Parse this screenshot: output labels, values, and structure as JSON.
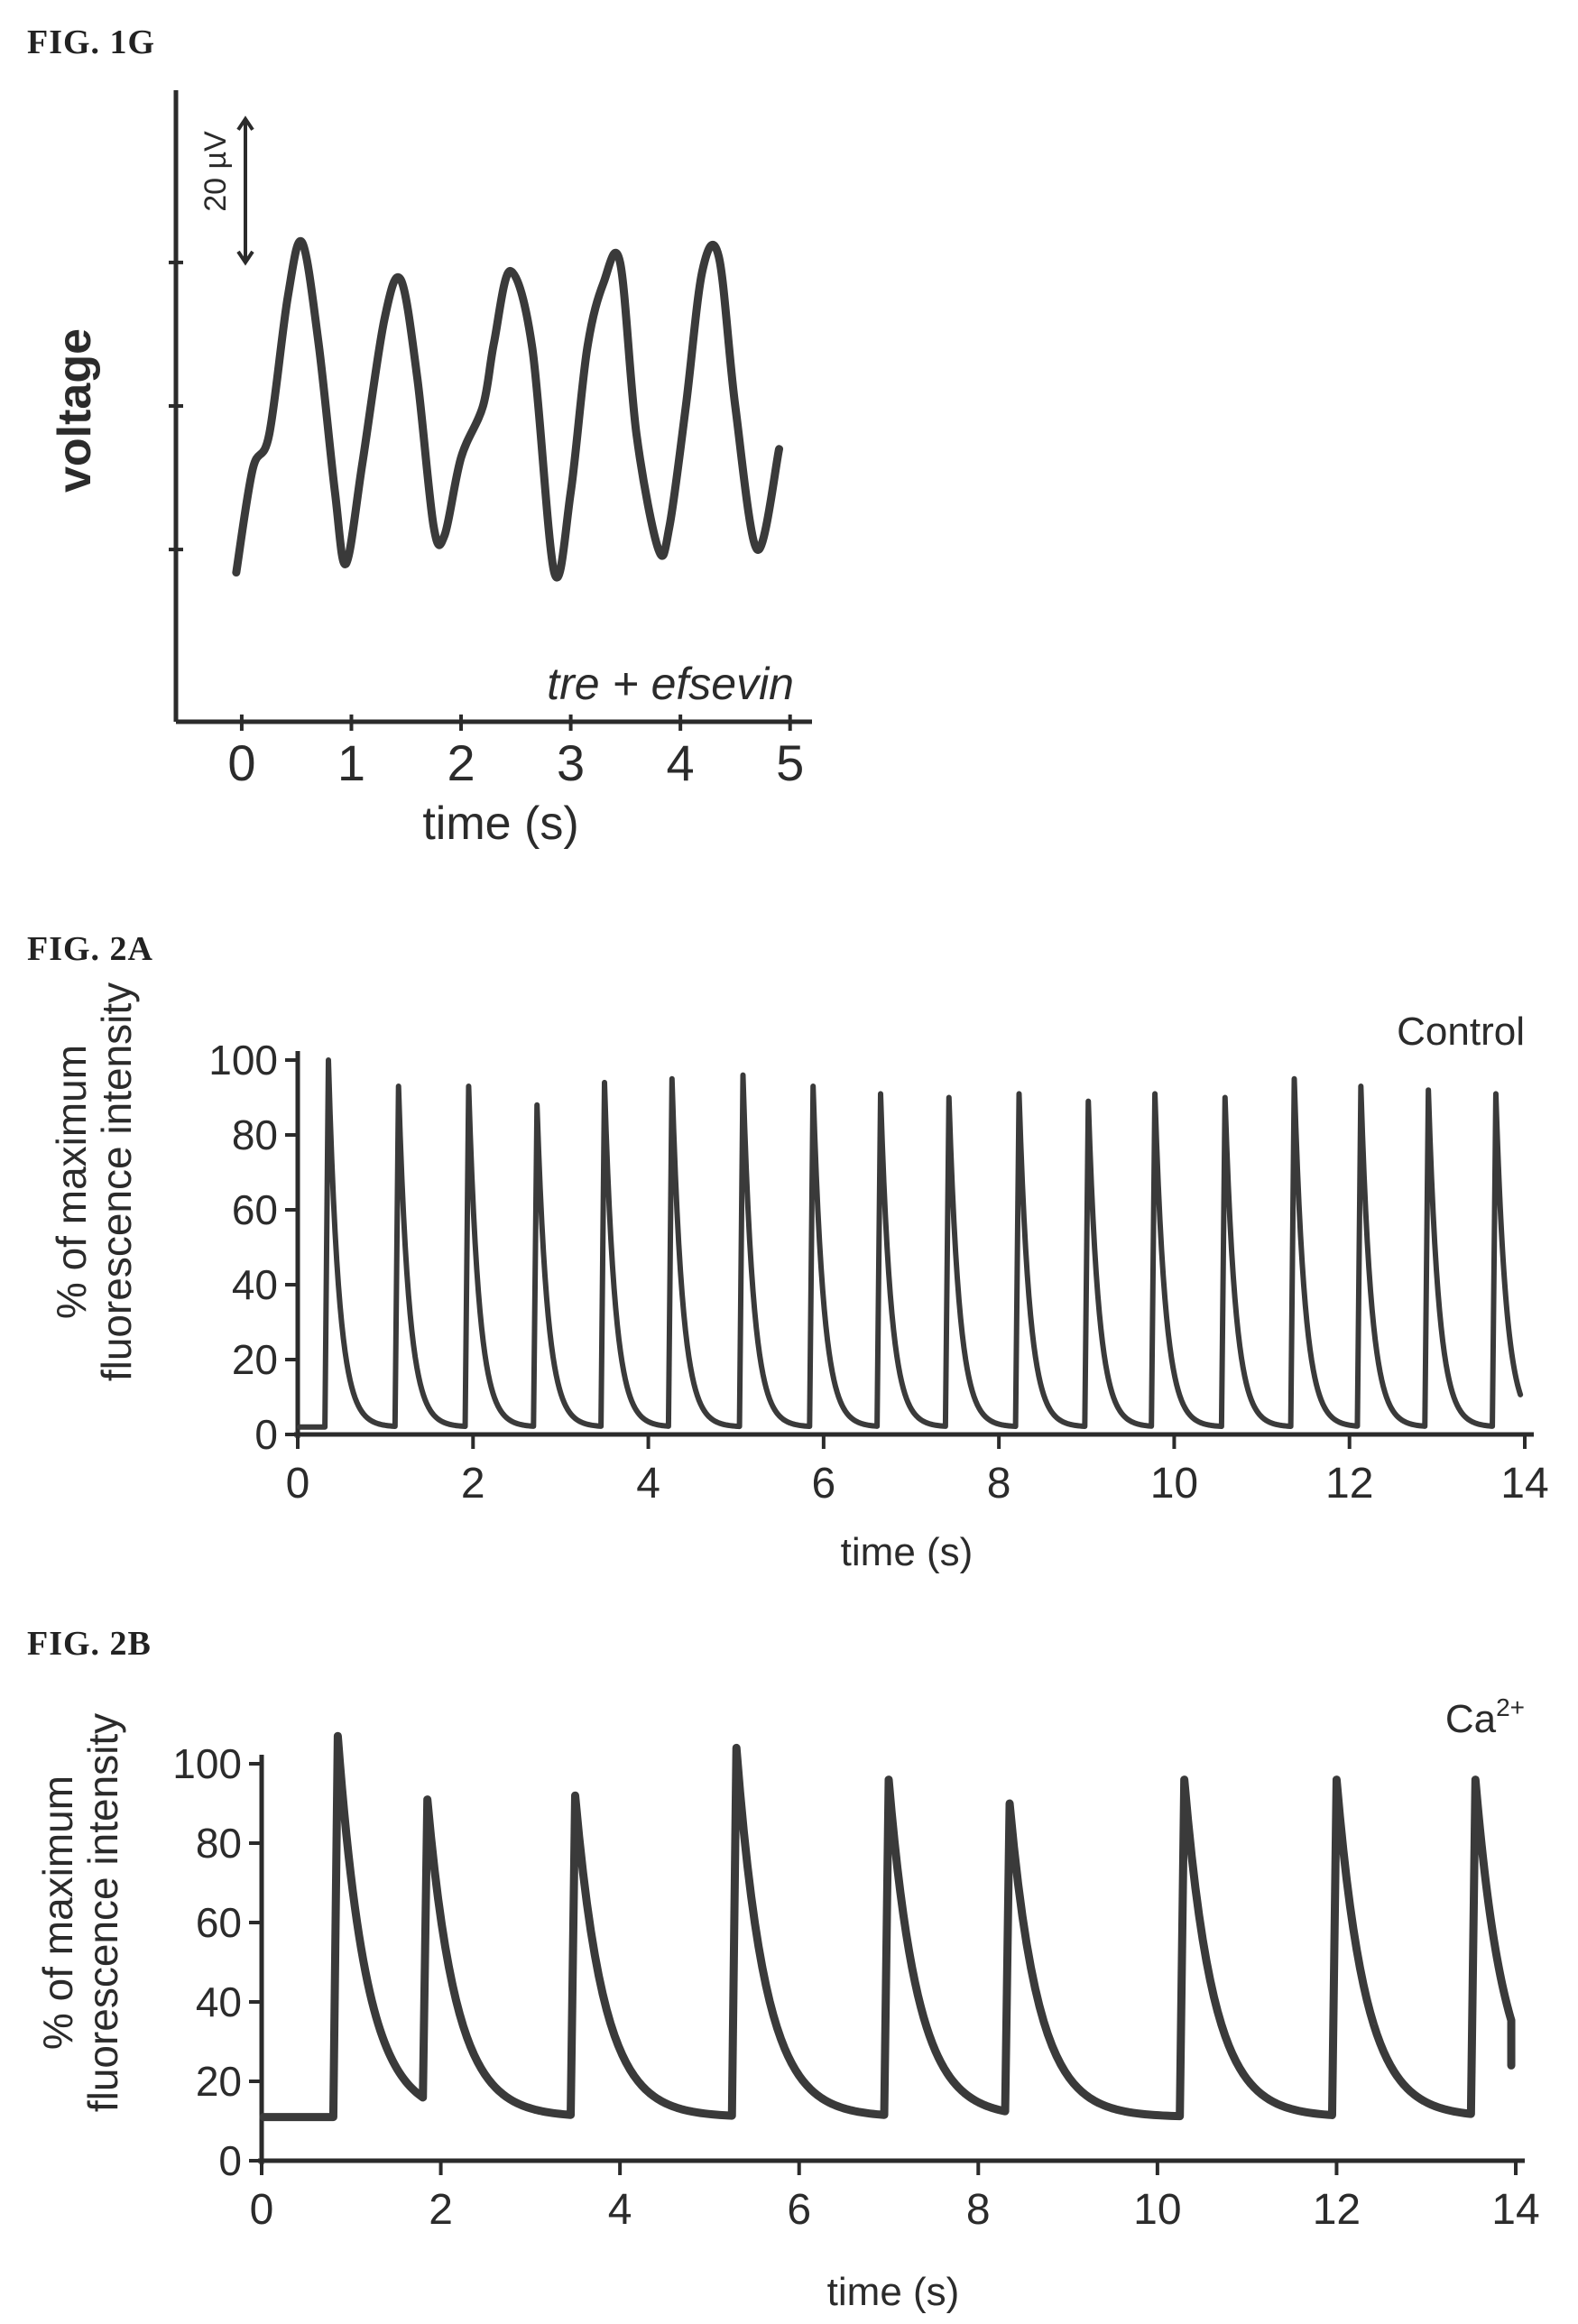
{
  "figures": {
    "g1": {
      "label": "FIG. 1G"
    },
    "a2": {
      "label": "FIG. 2A"
    },
    "b2": {
      "label": "FIG. 2B"
    }
  },
  "chart_data": [
    {
      "id": "fig1g",
      "type": "line",
      "title": "",
      "xlabel": "time (s)",
      "ylabel": "voltage",
      "xlim": [
        -0.6,
        5.2
      ],
      "ylim": [
        -110,
        110
      ],
      "xticks": [
        0,
        1,
        2,
        3,
        4,
        5
      ],
      "yticks_unlabeled": [
        -50,
        0,
        50
      ],
      "annotation": "tre + efsevin",
      "scalebar": {
        "label": "20 µV",
        "length": 20
      },
      "series": [
        {
          "x": [
            -0.05,
            0.1,
            0.25,
            0.42,
            0.55,
            0.7,
            0.85,
            0.95,
            1.1,
            1.3,
            1.45,
            1.6,
            1.75,
            1.85,
            2.0,
            2.2,
            2.3,
            2.45,
            2.65,
            2.85,
            3.0,
            3.15,
            3.3,
            3.45,
            3.6,
            3.8,
            3.9,
            4.05,
            4.2,
            4.35,
            4.5,
            4.7,
            4.9
          ],
          "y": [
            -58,
            -22,
            -10,
            38,
            57,
            22,
            -30,
            -55,
            -20,
            30,
            44,
            10,
            -42,
            -45,
            -18,
            0,
            22,
            47,
            20,
            -58,
            -30,
            20,
            43,
            50,
            -10,
            -50,
            -42,
            0,
            47,
            52,
            0,
            -50,
            -15
          ]
        }
      ]
    },
    {
      "id": "fig2a",
      "type": "line",
      "title": "",
      "xlabel": "time (s)",
      "ylabel": "% of maximum fluorescence intensity",
      "annotation": "Control",
      "xlim": [
        0,
        14
      ],
      "ylim": [
        0,
        100
      ],
      "xticks": [
        0,
        2,
        4,
        6,
        8,
        10,
        12,
        14
      ],
      "yticks": [
        0,
        20,
        40,
        60,
        80,
        100
      ],
      "peaks": {
        "times": [
          0.35,
          1.15,
          1.95,
          2.73,
          3.5,
          4.27,
          5.08,
          5.88,
          6.65,
          7.43,
          8.23,
          9.02,
          9.78,
          10.58,
          11.37,
          12.13,
          12.9,
          13.67
        ],
        "values": [
          100,
          93,
          93,
          88,
          94,
          95,
          96,
          93,
          91,
          90,
          91,
          89,
          91,
          90,
          95,
          93,
          92,
          91
        ]
      }
    },
    {
      "id": "fig2b",
      "type": "line",
      "title": "",
      "xlabel": "time (s)",
      "ylabel": "% of maximum fluorescence intensity",
      "annotation": "Ca2+",
      "annotation_base": "Ca",
      "annotation_sup": "2+",
      "xlim": [
        0,
        14
      ],
      "ylim": [
        0,
        100
      ],
      "xticks": [
        0,
        2,
        4,
        6,
        8,
        10,
        12,
        14
      ],
      "yticks": [
        0,
        20,
        40,
        60,
        80,
        100
      ],
      "baseline": 11,
      "end_value": 24,
      "peaks": {
        "times": [
          0.85,
          1.85,
          3.5,
          5.3,
          7.0,
          8.35,
          10.3,
          12.0,
          13.55
        ],
        "values": [
          107,
          91,
          92,
          104,
          96,
          90,
          96,
          96,
          96
        ]
      }
    }
  ],
  "axis_text": {
    "fig1g": {
      "xlabel": "time (s)",
      "ylabel": "voltage",
      "annotation": "tre + efsevin",
      "scalebar": "20 µV"
    },
    "fig2a": {
      "xlabel": "time (s)",
      "ylabel_line1": "% of maximum",
      "ylabel_line2": "fluorescence intensity",
      "annotation": "Control"
    },
    "fig2b": {
      "xlabel": "time (s)",
      "ylabel_line1": "% of maximum",
      "ylabel_line2": "fluorescence intensity"
    }
  }
}
